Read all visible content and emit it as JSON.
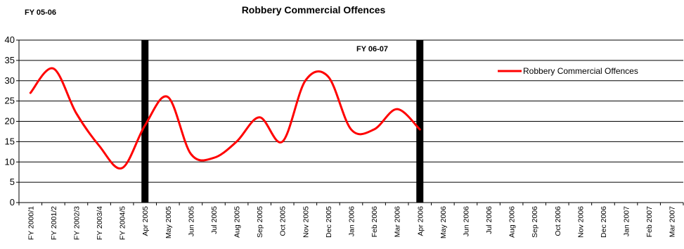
{
  "chart_data": {
    "type": "line",
    "title": "Robbery Commercial Offences",
    "annotations": [
      "FY 05-06",
      "FY 06-07"
    ],
    "xlabel": "",
    "ylabel": "",
    "ylim": [
      0,
      40
    ],
    "yticks": [
      0,
      5,
      10,
      15,
      20,
      25,
      30,
      35,
      40
    ],
    "grid": true,
    "legend_position": "right",
    "categories": [
      "FY 2000/1",
      "FY 2001/2",
      "FY 2002/3",
      "FY 2003/4",
      "FY 2004/5",
      "Apr 2005",
      "May 2005",
      "Jun 2005",
      "Jul 2005",
      "Aug 2005",
      "Sep 2005",
      "Oct 2005",
      "Nov 2005",
      "Dec 2005",
      "Jan 2006",
      "Feb 2006",
      "Mar 2006",
      "Apr 2006",
      "May 2006",
      "Jun 2006",
      "Jul 2006",
      "Aug 2006",
      "Sep 2006",
      "Oct 2006",
      "Nov 2006",
      "Dec 2006",
      "Jan 2007",
      "Feb 2007",
      "Mar 2007"
    ],
    "series": [
      {
        "name": "Robbery Commercial Offences",
        "color": "#ff0000",
        "values": [
          27,
          33,
          22,
          14,
          8.5,
          19,
          26,
          12,
          11,
          15,
          21,
          15,
          30,
          31,
          18,
          18,
          23,
          18,
          null,
          null,
          null,
          null,
          null,
          null,
          null,
          null,
          null,
          null,
          null
        ]
      }
    ],
    "period_markers": [
      "Apr 2005",
      "Apr 2006"
    ]
  }
}
